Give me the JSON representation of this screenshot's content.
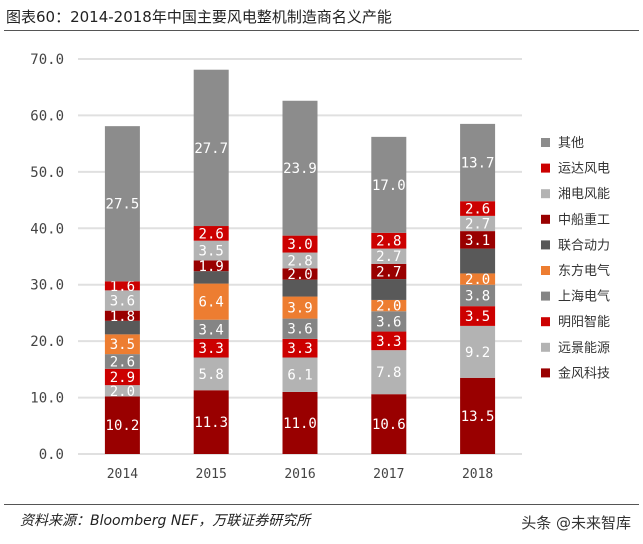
{
  "title": "图表60：2014-2018年中国主要风电整机制造商名义产能",
  "source": "资料来源：Bloomberg NEF，万联证券研究所",
  "watermark": "头条 @未来智库",
  "chart_data": {
    "type": "bar",
    "stacked": true,
    "categories": [
      "2014",
      "2015",
      "2016",
      "2017",
      "2018"
    ],
    "ylim": [
      0,
      70
    ],
    "yticks": [
      "0.0",
      "10.0",
      "20.0",
      "30.0",
      "40.0",
      "50.0",
      "60.0",
      "70.0"
    ],
    "grid": true,
    "legend_position": "right",
    "series": [
      {
        "name": "金风科技",
        "color": "#990000",
        "values": [
          10.2,
          11.3,
          11.0,
          10.6,
          13.5
        ],
        "labels": [
          "10.2",
          "11.3",
          "11.0",
          "10.6",
          "13.5"
        ]
      },
      {
        "name": "远景能源",
        "color": "#b3b3b3",
        "values": [
          2.0,
          5.8,
          6.1,
          7.8,
          9.2
        ],
        "labels": [
          "2.0",
          "5.8",
          "6.1",
          "7.8",
          "9.2"
        ]
      },
      {
        "name": "明阳智能",
        "color": "#cc0000",
        "values": [
          2.9,
          3.3,
          3.3,
          3.3,
          3.5
        ],
        "labels": [
          "2.9",
          "3.3",
          "3.3",
          "3.3",
          "3.5"
        ]
      },
      {
        "name": "上海电气",
        "color": "#858585",
        "values": [
          2.6,
          3.4,
          3.6,
          3.6,
          3.8
        ],
        "labels": [
          "2.6",
          "3.4",
          "3.6",
          "3.6",
          "3.8"
        ]
      },
      {
        "name": "东方电气",
        "color": "#ed7d31",
        "values": [
          3.5,
          6.4,
          3.9,
          2.0,
          2.0
        ],
        "labels": [
          "3.5",
          "6.4",
          "3.9",
          "2.0",
          "2.0"
        ]
      },
      {
        "name": "联合动力",
        "color": "#595959",
        "values": [
          2.4,
          2.2,
          3.0,
          3.7,
          4.4
        ],
        "labels": [
          "",
          "",
          "",
          "",
          ""
        ]
      },
      {
        "name": "中船重工",
        "color": "#990000",
        "values": [
          1.8,
          1.9,
          2.0,
          2.7,
          3.1
        ],
        "labels": [
          "1.8",
          "1.9",
          "2.0",
          "2.7",
          "3.1"
        ]
      },
      {
        "name": "湘电风能",
        "color": "#b3b3b3",
        "values": [
          3.6,
          3.5,
          2.8,
          2.7,
          2.7
        ],
        "labels": [
          "3.6",
          "3.5",
          "2.8",
          "2.7",
          "2.7"
        ]
      },
      {
        "name": "运达风电",
        "color": "#cc0000",
        "values": [
          1.6,
          2.6,
          3.0,
          2.8,
          2.6
        ],
        "labels": [
          "1.6",
          "2.6",
          "3.0",
          "2.8",
          "2.6"
        ]
      },
      {
        "name": "其他",
        "color": "#8c8c8c",
        "values": [
          27.5,
          27.7,
          23.9,
          17.0,
          13.7
        ],
        "labels": [
          "27.5",
          "27.7",
          "23.9",
          "17.0",
          "13.7"
        ]
      }
    ]
  }
}
